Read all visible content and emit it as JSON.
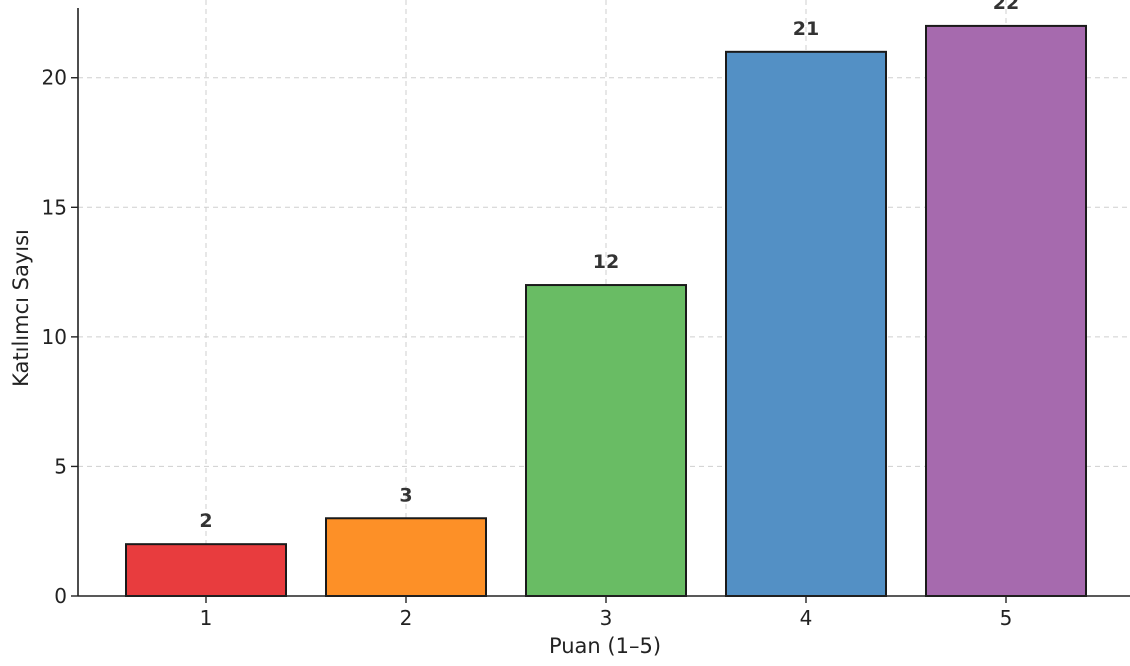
{
  "chart_data": {
    "type": "bar",
    "title": "",
    "xlabel": "Puan (1–5)",
    "ylabel": "Katılımcı Sayısı",
    "categories": [
      "1",
      "2",
      "3",
      "4",
      "5"
    ],
    "values": [
      2,
      3,
      12,
      21,
      22
    ],
    "data_labels": [
      "2",
      "3",
      "12",
      "21",
      "22"
    ],
    "colors": [
      "#e83c3e",
      "#fd9027",
      "#69bc64",
      "#5390c5",
      "#a66aae"
    ],
    "ylim": [
      0,
      23
    ],
    "yticks": [
      0,
      5,
      10,
      15,
      20
    ],
    "ytick_labels": [
      "0",
      "5",
      "10",
      "15",
      "20"
    ],
    "grid": true,
    "legend": "none"
  }
}
